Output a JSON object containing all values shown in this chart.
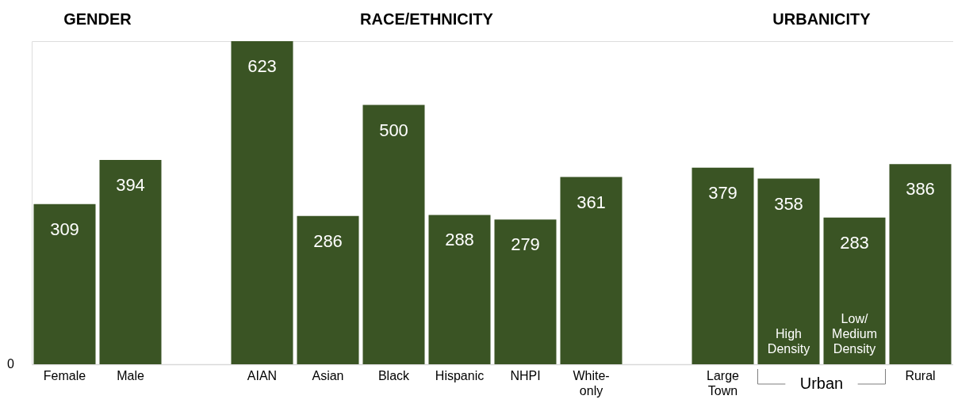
{
  "chart_data": {
    "type": "bar",
    "categories": [
      "Female",
      "Male",
      null,
      "AIAN",
      "Asian",
      "Black",
      "Hispanic",
      "NHPI",
      "White-only",
      null,
      "Large Town",
      "High Density",
      "Low/Medium Density",
      "Rural"
    ],
    "values": [
      309,
      394,
      null,
      623,
      286,
      500,
      288,
      279,
      361,
      null,
      379,
      358,
      283,
      386
    ],
    "color": "#3a5424",
    "data_labels": true,
    "grid": false,
    "annotations": [
      "GENDER",
      "RACE/ETHNICITY",
      "URBANICITY",
      "Urban",
      "0"
    ]
  }
}
